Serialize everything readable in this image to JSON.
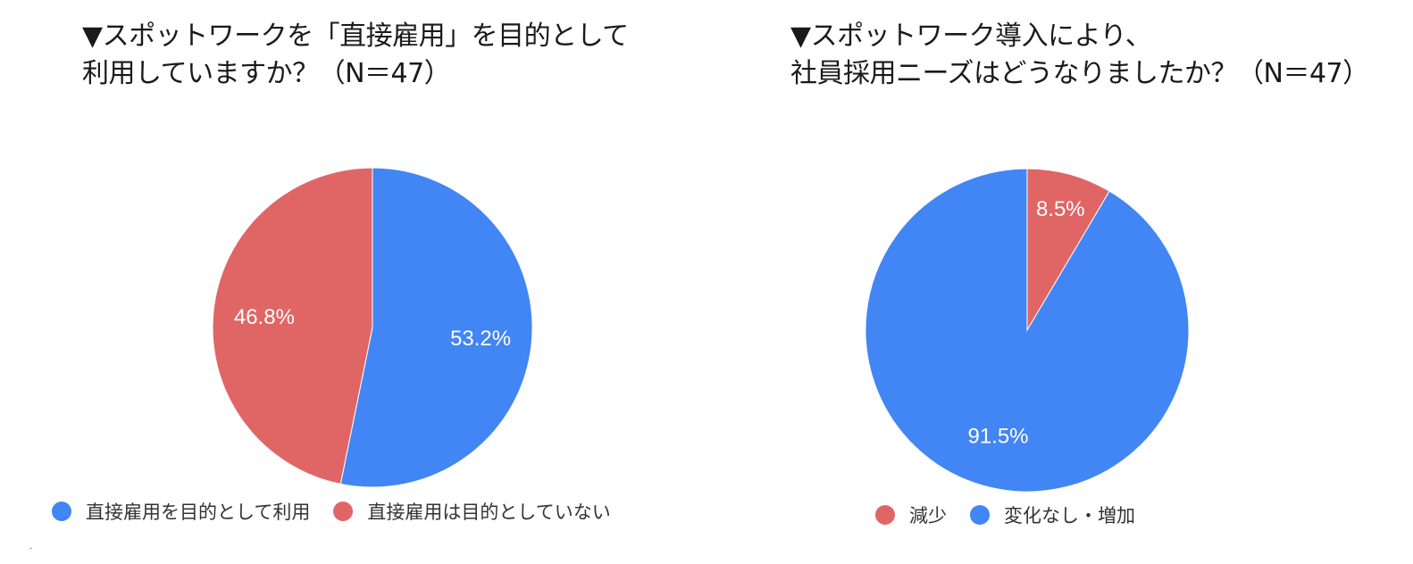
{
  "colors": {
    "blue": "#4285f4",
    "red": "#e06666",
    "label_text": "#ffffff"
  },
  "stray_mark": ".",
  "chart_data": [
    {
      "type": "pie",
      "title_lines": [
        "▼スポットワークを「直接雇用」を目的として",
        "利用していますか？（N＝47）"
      ],
      "slices": [
        {
          "label": "直接雇用を目的として利用",
          "value": 53.2,
          "display": "53.2%",
          "color": "#4285f4"
        },
        {
          "label": "直接雇用は目的としていない",
          "value": 46.8,
          "display": "46.8%",
          "color": "#e06666"
        }
      ],
      "legend_position": "bottom",
      "start": "top-clockwise"
    },
    {
      "type": "pie",
      "title_lines": [
        "▼スポットワーク導入により、",
        "社員採用ニーズはどうなりましたか？（N＝47）"
      ],
      "slices": [
        {
          "label": "減少",
          "value": 8.5,
          "display": "8.5%",
          "color": "#e06666"
        },
        {
          "label": "変化なし・増加",
          "value": 91.5,
          "display": "91.5%",
          "color": "#4285f4"
        }
      ],
      "legend_position": "bottom",
      "start": "top-clockwise"
    }
  ]
}
